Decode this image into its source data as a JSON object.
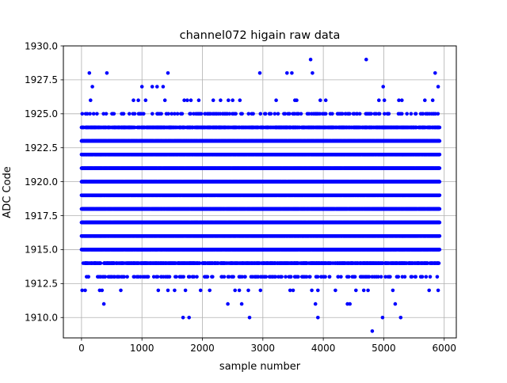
{
  "chart_data": {
    "type": "scatter",
    "title": "channel072 higain raw data",
    "xlabel": "sample number",
    "ylabel": "ADC Code",
    "xlim": [
      -300,
      6200
    ],
    "ylim": [
      1908.5,
      1930.0
    ],
    "xticks": [
      0,
      1000,
      2000,
      3000,
      4000,
      5000,
      6000
    ],
    "xtick_labels": [
      "0",
      "1000",
      "2000",
      "3000",
      "4000",
      "5000",
      "6000"
    ],
    "yticks": [
      1910.0,
      1912.5,
      1915.0,
      1917.5,
      1920.0,
      1922.5,
      1925.0,
      1927.5,
      1930.0
    ],
    "ytick_labels": [
      "1910.0",
      "1912.5",
      "1915.0",
      "1917.5",
      "1920.0",
      "1922.5",
      "1925.0",
      "1927.5",
      "1930.0"
    ],
    "grid": true,
    "marker_color": "#0000ff",
    "sample_range": [
      0,
      5925
    ],
    "dense_levels": [
      1915,
      1916,
      1917,
      1918,
      1919,
      1920,
      1921,
      1922,
      1923
    ],
    "semi_dense_levels": [
      {
        "y": 1914,
        "fraction": 0.45
      },
      {
        "y": 1924,
        "fraction": 0.55
      },
      {
        "y": 1913,
        "fraction": 0.12
      },
      {
        "y": 1925,
        "fraction": 0.12
      }
    ],
    "sparse_points": [
      {
        "x": 10,
        "y": 1912
      },
      {
        "x": 60,
        "y": 1912
      },
      {
        "x": 300,
        "y": 1912
      },
      {
        "x": 340,
        "y": 1912
      },
      {
        "x": 650,
        "y": 1912
      },
      {
        "x": 1270,
        "y": 1912
      },
      {
        "x": 1430,
        "y": 1912
      },
      {
        "x": 1540,
        "y": 1912
      },
      {
        "x": 1720,
        "y": 1912
      },
      {
        "x": 1970,
        "y": 1912
      },
      {
        "x": 2120,
        "y": 1912
      },
      {
        "x": 2540,
        "y": 1912
      },
      {
        "x": 2610,
        "y": 1912
      },
      {
        "x": 2760,
        "y": 1912
      },
      {
        "x": 2960,
        "y": 1912
      },
      {
        "x": 3450,
        "y": 1912
      },
      {
        "x": 3500,
        "y": 1912
      },
      {
        "x": 3810,
        "y": 1912
      },
      {
        "x": 3910,
        "y": 1912
      },
      {
        "x": 4200,
        "y": 1912
      },
      {
        "x": 4540,
        "y": 1912
      },
      {
        "x": 4670,
        "y": 1912
      },
      {
        "x": 4740,
        "y": 1912
      },
      {
        "x": 5150,
        "y": 1912
      },
      {
        "x": 5750,
        "y": 1912
      },
      {
        "x": 5900,
        "y": 1912
      },
      {
        "x": 370,
        "y": 1911
      },
      {
        "x": 2420,
        "y": 1911
      },
      {
        "x": 2650,
        "y": 1911
      },
      {
        "x": 3870,
        "y": 1911
      },
      {
        "x": 4400,
        "y": 1911
      },
      {
        "x": 4440,
        "y": 1911
      },
      {
        "x": 5190,
        "y": 1911
      },
      {
        "x": 1680,
        "y": 1910
      },
      {
        "x": 1780,
        "y": 1910
      },
      {
        "x": 2780,
        "y": 1910
      },
      {
        "x": 3910,
        "y": 1910
      },
      {
        "x": 4980,
        "y": 1910
      },
      {
        "x": 5280,
        "y": 1910
      },
      {
        "x": 4810,
        "y": 1909
      },
      {
        "x": 150,
        "y": 1926
      },
      {
        "x": 860,
        "y": 1926
      },
      {
        "x": 940,
        "y": 1926
      },
      {
        "x": 1060,
        "y": 1926
      },
      {
        "x": 1380,
        "y": 1926
      },
      {
        "x": 1700,
        "y": 1926
      },
      {
        "x": 1750,
        "y": 1926
      },
      {
        "x": 1810,
        "y": 1926
      },
      {
        "x": 1940,
        "y": 1926
      },
      {
        "x": 2180,
        "y": 1926
      },
      {
        "x": 2300,
        "y": 1926
      },
      {
        "x": 2430,
        "y": 1926
      },
      {
        "x": 2500,
        "y": 1926
      },
      {
        "x": 2620,
        "y": 1926
      },
      {
        "x": 3220,
        "y": 1926
      },
      {
        "x": 3530,
        "y": 1926
      },
      {
        "x": 3560,
        "y": 1926
      },
      {
        "x": 3950,
        "y": 1926
      },
      {
        "x": 4040,
        "y": 1926
      },
      {
        "x": 4920,
        "y": 1926
      },
      {
        "x": 5010,
        "y": 1926
      },
      {
        "x": 5250,
        "y": 1926
      },
      {
        "x": 5300,
        "y": 1926
      },
      {
        "x": 5680,
        "y": 1926
      },
      {
        "x": 5810,
        "y": 1926
      },
      {
        "x": 180,
        "y": 1927
      },
      {
        "x": 1000,
        "y": 1927
      },
      {
        "x": 1170,
        "y": 1927
      },
      {
        "x": 1250,
        "y": 1927
      },
      {
        "x": 1350,
        "y": 1927
      },
      {
        "x": 4990,
        "y": 1927
      },
      {
        "x": 5900,
        "y": 1927
      },
      {
        "x": 130,
        "y": 1928
      },
      {
        "x": 420,
        "y": 1928
      },
      {
        "x": 1430,
        "y": 1928
      },
      {
        "x": 2950,
        "y": 1928
      },
      {
        "x": 3400,
        "y": 1928
      },
      {
        "x": 3480,
        "y": 1928
      },
      {
        "x": 3820,
        "y": 1928
      },
      {
        "x": 5850,
        "y": 1928
      },
      {
        "x": 3790,
        "y": 1929
      },
      {
        "x": 4710,
        "y": 1929
      }
    ]
  }
}
